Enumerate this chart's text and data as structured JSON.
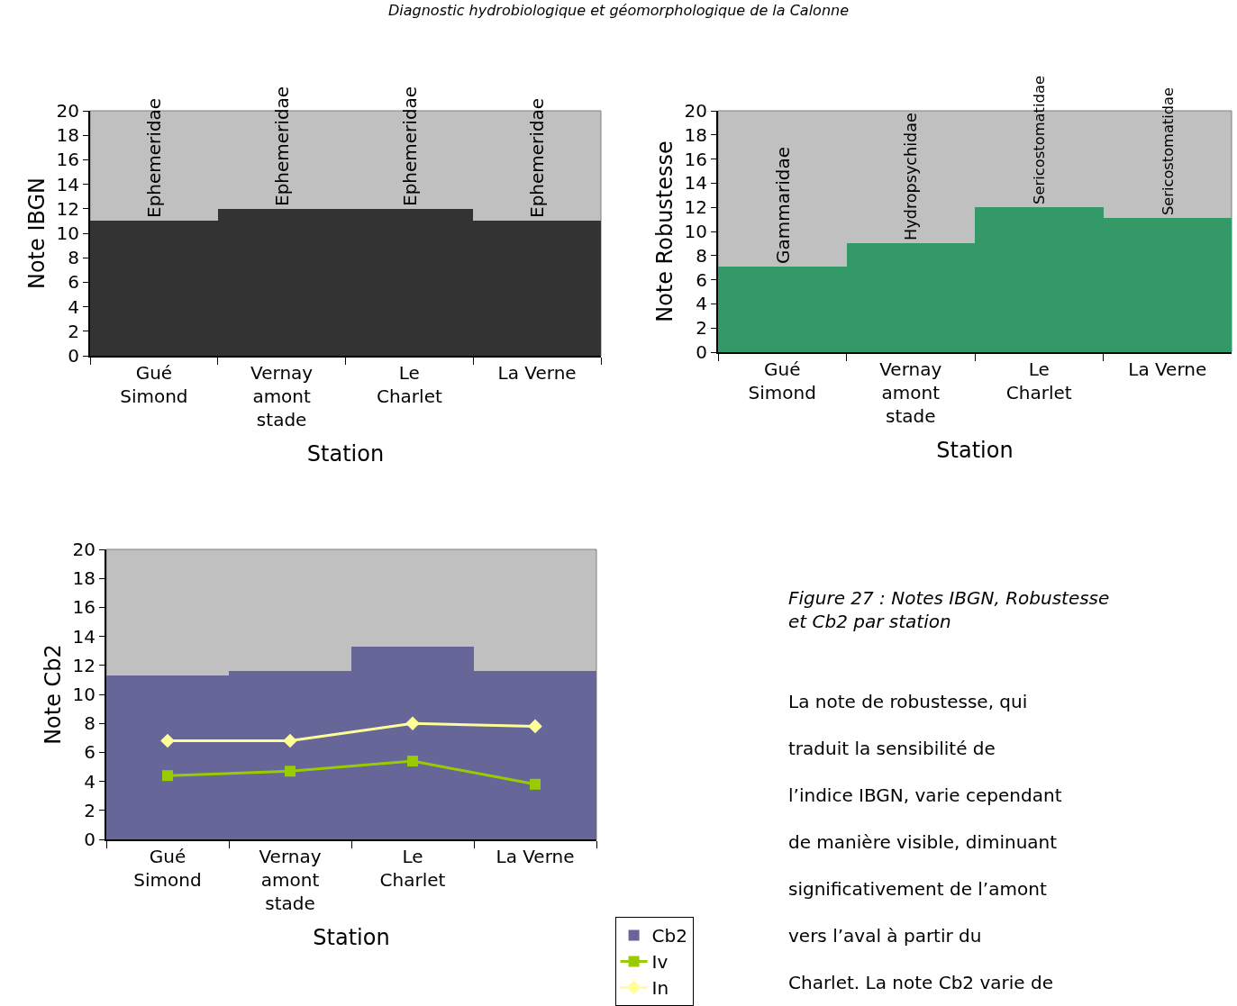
{
  "chart_data": [
    {
      "type": "bar",
      "annotations": [
        "Diagnostic hydrobiologique et géomorphologique de la Calonne"
      ],
      "xlabel": "Station",
      "ylabel": "Note IBGN",
      "categories": [
        "Gué Simond",
        "Vernay amont stade",
        "Le Charlet",
        "La Verne"
      ],
      "values": [
        11,
        12,
        12,
        11
      ],
      "color": "#333333",
      "value_labels": [
        "Ephemeridae",
        "Ephemeridae",
        "Ephemeridae",
        "Ephemeridae"
      ],
      "ylim": [
        0,
        20
      ],
      "yticks": [
        0,
        2,
        4,
        6,
        8,
        10,
        12,
        14,
        16,
        18,
        20
      ],
      "grid": false,
      "legend": false
    },
    {
      "type": "bar",
      "xlabel": "Station",
      "ylabel": "Note Robustesse",
      "categories": [
        "Gué Simond",
        "Vernay amont stade",
        "Le Charlet",
        "La Verne"
      ],
      "values": [
        7.1,
        9,
        12,
        11.1
      ],
      "color": "#339966",
      "value_labels": [
        "Gammaridae",
        "Hydropsychidae",
        "Sericostomatidae",
        "Sericostomatidae"
      ],
      "ylim": [
        0,
        20
      ],
      "yticks": [
        0,
        2,
        4,
        6,
        8,
        10,
        12,
        14,
        16,
        18,
        20
      ],
      "grid": false,
      "legend": false
    },
    {
      "type": "bar",
      "xlabel": "Station",
      "ylabel": "Note Cb2",
      "categories": [
        "Gué Simond",
        "Vernay amont stade",
        "Le Charlet",
        "La Verne"
      ],
      "series": [
        {
          "name": "Cb2",
          "type": "bar",
          "color": "#666699",
          "values": [
            11.3,
            11.6,
            13.3,
            11.6
          ]
        },
        {
          "name": "Iv",
          "type": "line",
          "color": "#99cc00",
          "marker": "square",
          "values": [
            4.4,
            4.7,
            5.4,
            3.8
          ]
        },
        {
          "name": "In",
          "type": "line",
          "color": "#ffff99",
          "marker": "diamond",
          "values": [
            6.8,
            6.8,
            8.0,
            7.8
          ]
        }
      ],
      "ylim": [
        0,
        20
      ],
      "yticks": [
        0,
        2,
        4,
        6,
        8,
        10,
        12,
        14,
        16,
        18,
        20
      ],
      "grid": false,
      "legend": "right"
    },
    {
      "type": "other",
      "annotations": [
        "Figure 27 : Notes IBGN, Robustesse et Cb2 par station",
        "La note de robustesse, qui traduit la sensibilité de l’indice IBGN, varie cependant de manière visible, diminuant significativement de l’amont vers l’aval à partir du Charlet. La note Cb2 varie de"
      ]
    }
  ]
}
